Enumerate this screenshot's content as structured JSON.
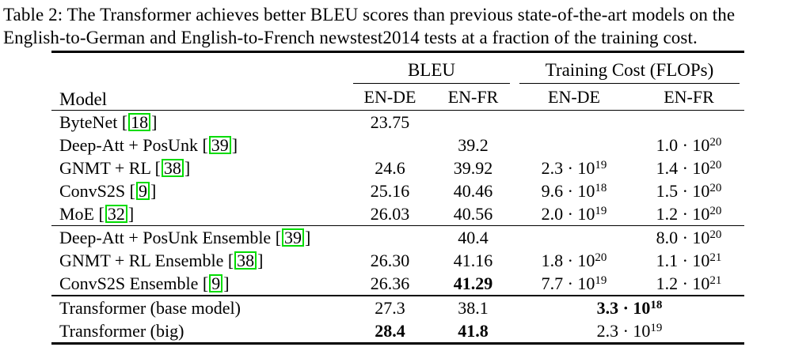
{
  "page": {
    "background_color": "#ffffff",
    "text_color": "#000000"
  },
  "caption": {
    "label": "Table 2:",
    "lines": [
      "Table 2: The Transformer achieves better BLEU scores than previous state-of-the-art models on the",
      "English-to-German and English-to-French newstest2014 tests at a fraction of the training cost."
    ]
  },
  "table": {
    "link_box_color": "#00dc00",
    "bracket_open": "[",
    "bracket_close": "]",
    "headers": {
      "model": "Model",
      "bleu_group": "BLEU",
      "cost_group": "Training Cost (FLOPs)",
      "bleu_en_de": "EN-DE",
      "bleu_en_fr": "EN-FR",
      "cost_en_de": "EN-DE",
      "cost_en_fr": "EN-FR"
    },
    "rows": [
      {
        "model": "ByteNet",
        "cite": "18",
        "bleu_en_de": "23.75",
        "bleu_en_fr": "",
        "cost_en_de_base": "",
        "cost_en_de_exp": "",
        "cost_en_fr_base": "",
        "cost_en_fr_exp": ""
      },
      {
        "model": "Deep-Att + PosUnk",
        "cite": "39",
        "bleu_en_de": "",
        "bleu_en_fr": "39.2",
        "cost_en_de_base": "",
        "cost_en_de_exp": "",
        "cost_en_fr_base": "1.0 · 10",
        "cost_en_fr_exp": "20"
      },
      {
        "model": "GNMT + RL",
        "cite": "38",
        "bleu_en_de": "24.6",
        "bleu_en_fr": "39.92",
        "cost_en_de_base": "2.3 · 10",
        "cost_en_de_exp": "19",
        "cost_en_fr_base": "1.4 · 10",
        "cost_en_fr_exp": "20"
      },
      {
        "model": "ConvS2S",
        "cite": "9",
        "bleu_en_de": "25.16",
        "bleu_en_fr": "40.46",
        "cost_en_de_base": "9.6 · 10",
        "cost_en_de_exp": "18",
        "cost_en_fr_base": "1.5 · 10",
        "cost_en_fr_exp": "20"
      },
      {
        "model": "MoE",
        "cite": "32",
        "bleu_en_de": "26.03",
        "bleu_en_fr": "40.56",
        "cost_en_de_base": "2.0 · 10",
        "cost_en_de_exp": "19",
        "cost_en_fr_base": "1.2 · 10",
        "cost_en_fr_exp": "20"
      },
      {
        "model": "Deep-Att + PosUnk Ensemble",
        "cite": "39",
        "bleu_en_de": "",
        "bleu_en_fr": "40.4",
        "cost_en_de_base": "",
        "cost_en_de_exp": "",
        "cost_en_fr_base": "8.0 · 10",
        "cost_en_fr_exp": "20"
      },
      {
        "model": "GNMT + RL Ensemble",
        "cite": "38",
        "bleu_en_de": "26.30",
        "bleu_en_fr": "41.16",
        "cost_en_de_base": "1.8 · 10",
        "cost_en_de_exp": "20",
        "cost_en_fr_base": "1.1 · 10",
        "cost_en_fr_exp": "21"
      },
      {
        "model": "ConvS2S Ensemble",
        "cite": "9",
        "bleu_en_de": "26.36",
        "bleu_en_fr": "41.29",
        "cost_en_de_base": "7.7 · 10",
        "cost_en_de_exp": "19",
        "cost_en_fr_base": "1.2 · 10",
        "cost_en_fr_exp": "21"
      },
      {
        "model": "Transformer (base model)",
        "cite": "",
        "bleu_en_de": "27.3",
        "bleu_en_fr": "38.1",
        "cost_span_base": "3.3 · 10",
        "cost_span_exp": "18"
      },
      {
        "model": "Transformer (big)",
        "cite": "",
        "bleu_en_de": "28.4",
        "bleu_en_fr": "41.8",
        "cost_span_base": "2.3 · 10",
        "cost_span_exp": "19"
      }
    ]
  }
}
